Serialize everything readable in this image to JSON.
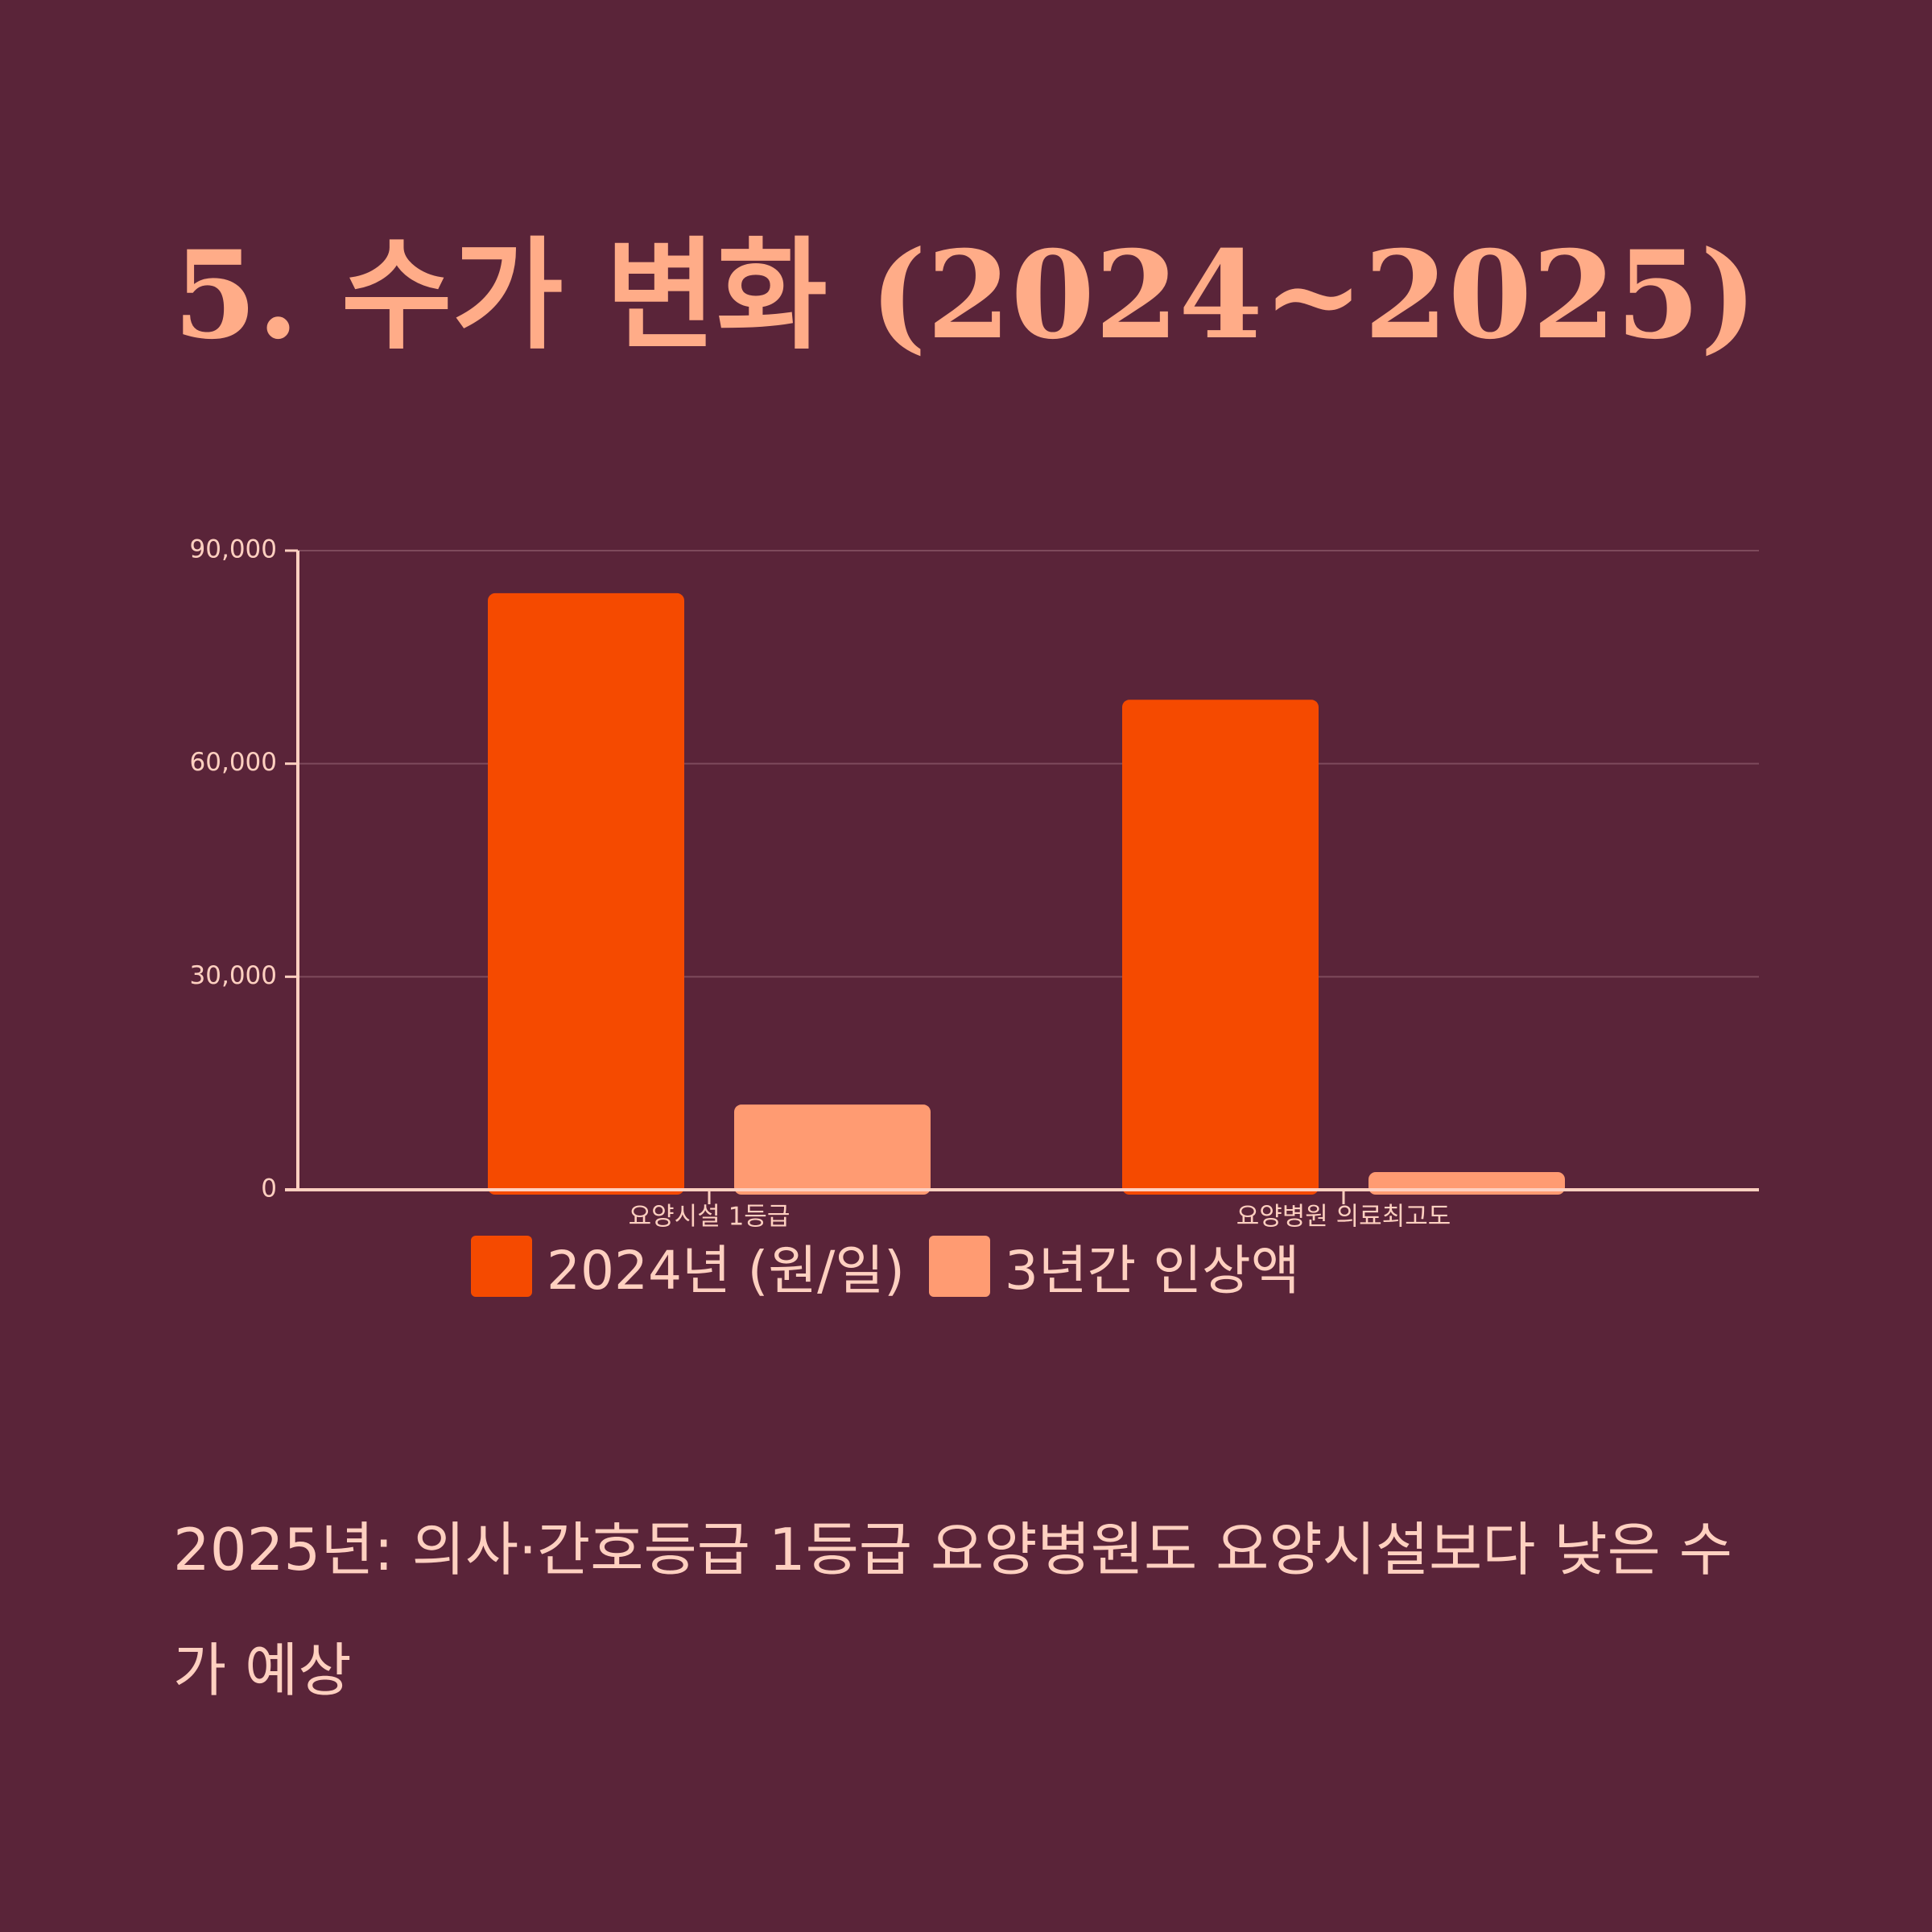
{
  "title": "5. 수가 변화 (2024~2025)",
  "caption": "2025년: 의사·간호등급 1등급 요양병원도 요양시설보다 낮은 수가 예상",
  "colors": {
    "background": "#5a2439",
    "title": "#ffac88",
    "text": "#ffd0c0",
    "series_2024": "#f54a00",
    "series_increase": "#ff9b72"
  },
  "chart_data": {
    "type": "bar",
    "categories": [
      "요양시설 1등급",
      "요양병원 의료최고도"
    ],
    "series": [
      {
        "name": "2024년 (원/일)",
        "values": [
          84000,
          69000
        ]
      },
      {
        "name": "3년간 인상액",
        "values": [
          12000,
          2500
        ]
      }
    ],
    "ylim": [
      0,
      90000
    ],
    "yticks": [
      0,
      30000,
      60000,
      90000
    ],
    "ytick_labels": [
      "0",
      "30,000",
      "60,000",
      "90,000"
    ],
    "xlabel": "",
    "ylabel": "",
    "grid": true,
    "legend_position": "bottom-center"
  }
}
